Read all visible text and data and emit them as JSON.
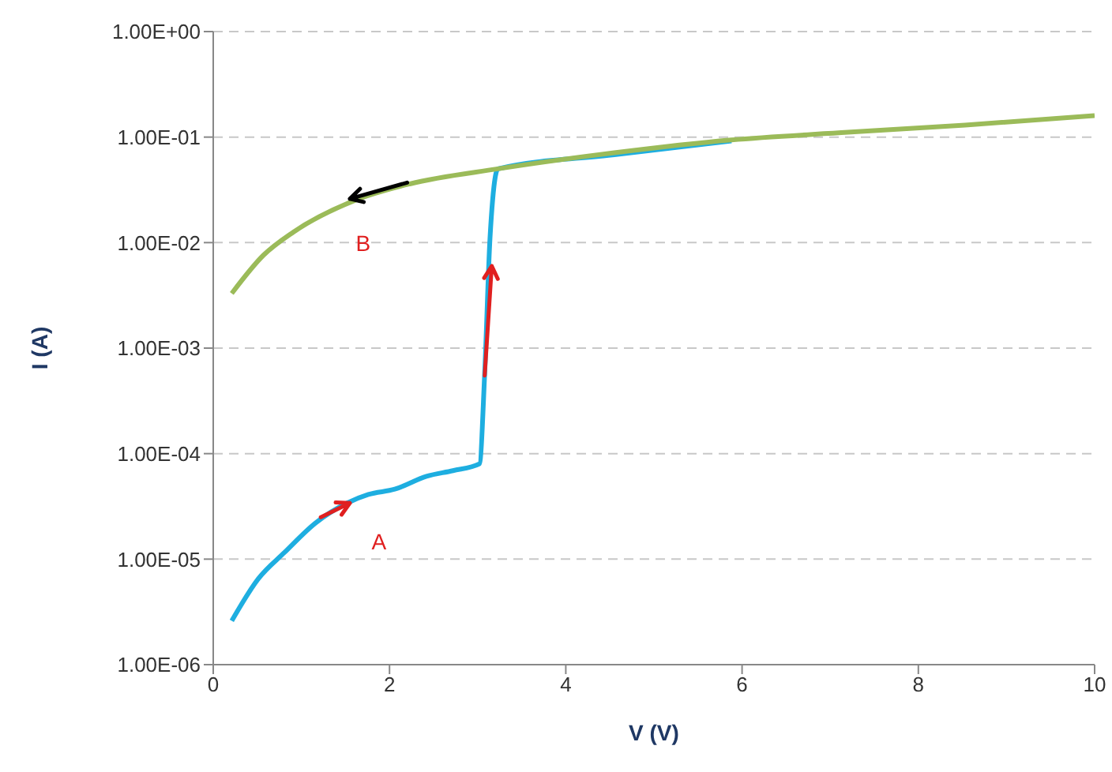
{
  "chart_data": {
    "type": "line",
    "xlabel": "V (V)",
    "ylabel": "I (A)",
    "log": "y",
    "grid": "y",
    "marker": "none",
    "line_style": "solid",
    "xlim": [
      0,
      10
    ],
    "xticks": [
      0,
      2,
      4,
      6,
      8,
      10
    ],
    "ylim": [
      1e-06,
      1
    ],
    "yticks": [
      {
        "value": 1e-06,
        "label": "1.00E-06"
      },
      {
        "value": 1e-05,
        "label": "1.00E-05"
      },
      {
        "value": 0.0001,
        "label": "1.00E-04"
      },
      {
        "value": 0.001,
        "label": "1.00E-03"
      },
      {
        "value": 0.01,
        "label": "1.00E-02"
      },
      {
        "value": 0.1,
        "label": "1.00E-01"
      },
      {
        "value": 1,
        "label": "1.00E+00"
      }
    ],
    "series": [
      {
        "color": "#1eaee0",
        "x": [
          0.21,
          0.51,
          0.81,
          1.16,
          1.52,
          1.76,
          2.06,
          2.42,
          2.72,
          3.02,
          3.08,
          3.14,
          3.23,
          4.55,
          5.88
        ],
        "values": [
          2.6e-06,
          6.5e-06,
          1.16e-05,
          2.2e-05,
          3.4e-05,
          4.1e-05,
          4.6e-05,
          6.1e-05,
          6.9e-05,
          8e-05,
          0.00058,
          0.011,
          0.05,
          0.068,
          0.092
        ]
      },
      {
        "color": "#9bbb59",
        "x": [
          0.21,
          0.57,
          0.91,
          1.6,
          2.23,
          3.23,
          4.55,
          5.88,
          7.2,
          8.53,
          10
        ],
        "values": [
          0.0033,
          0.0076,
          0.0126,
          0.025,
          0.036,
          0.05,
          0.071,
          0.094,
          0.111,
          0.13,
          0.16
        ]
      }
    ],
    "annotations": [
      "A",
      "B"
    ]
  }
}
